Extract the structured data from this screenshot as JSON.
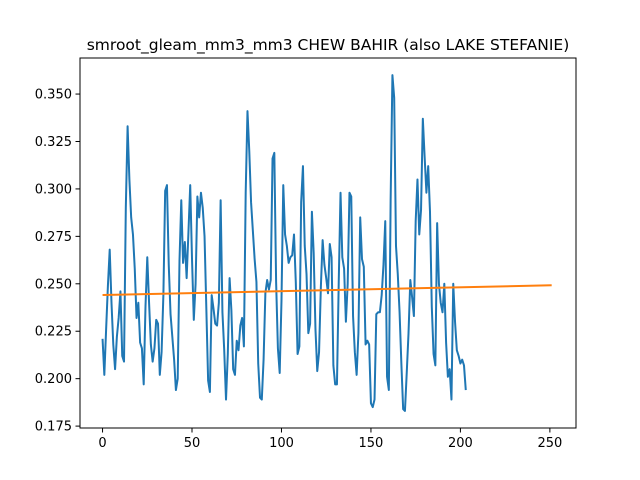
{
  "chart_data": {
    "type": "line",
    "title": "smroot_gleam_mm3_mm3 CHEW BAHIR (also LAKE STEFANIE)",
    "xlabel": "",
    "ylabel": "",
    "xlim": [
      -12.6,
      264.6
    ],
    "ylim": [
      0.174,
      0.369
    ],
    "x_ticks": [
      0,
      50,
      100,
      150,
      200,
      250
    ],
    "y_ticks": [
      0.175,
      0.2,
      0.225,
      0.25,
      0.275,
      0.3,
      0.325,
      0.35
    ],
    "y_tick_labels": [
      "0.175",
      "0.200",
      "0.225",
      "0.250",
      "0.275",
      "0.300",
      "0.325",
      "0.350"
    ],
    "grid": false,
    "series": [
      {
        "color": "#1f77b4",
        "points": [
          [
            0,
            0.221
          ],
          [
            1,
            0.202
          ],
          [
            2,
            0.226
          ],
          [
            3,
            0.249
          ],
          [
            4,
            0.268
          ],
          [
            5,
            0.24
          ],
          [
            6,
            0.218
          ],
          [
            7,
            0.205
          ],
          [
            8,
            0.222
          ],
          [
            9,
            0.232
          ],
          [
            10,
            0.246
          ],
          [
            11,
            0.212
          ],
          [
            12,
            0.209
          ],
          [
            13,
            0.29
          ],
          [
            14,
            0.333
          ],
          [
            15,
            0.305
          ],
          [
            16,
            0.285
          ],
          [
            17,
            0.276
          ],
          [
            18,
            0.258
          ],
          [
            19,
            0.232
          ],
          [
            20,
            0.24
          ],
          [
            21,
            0.219
          ],
          [
            22,
            0.216
          ],
          [
            23,
            0.197
          ],
          [
            24,
            0.238
          ],
          [
            25,
            0.264
          ],
          [
            26,
            0.24
          ],
          [
            27,
            0.218
          ],
          [
            28,
            0.209
          ],
          [
            29,
            0.216
          ],
          [
            30,
            0.231
          ],
          [
            31,
            0.229
          ],
          [
            32,
            0.202
          ],
          [
            33,
            0.214
          ],
          [
            34,
            0.244
          ],
          [
            35,
            0.299
          ],
          [
            36,
            0.302
          ],
          [
            37,
            0.26
          ],
          [
            38,
            0.234
          ],
          [
            39,
            0.222
          ],
          [
            40,
            0.21
          ],
          [
            41,
            0.194
          ],
          [
            42,
            0.2
          ],
          [
            43,
            0.262
          ],
          [
            44,
            0.294
          ],
          [
            45,
            0.261
          ],
          [
            46,
            0.272
          ],
          [
            47,
            0.253
          ],
          [
            48,
            0.277
          ],
          [
            49,
            0.302
          ],
          [
            50,
            0.263
          ],
          [
            51,
            0.231
          ],
          [
            52,
            0.25
          ],
          [
            53,
            0.296
          ],
          [
            54,
            0.285
          ],
          [
            55,
            0.298
          ],
          [
            56,
            0.29
          ],
          [
            57,
            0.275
          ],
          [
            58,
            0.237
          ],
          [
            59,
            0.199
          ],
          [
            60,
            0.193
          ],
          [
            61,
            0.244
          ],
          [
            62,
            0.237
          ],
          [
            63,
            0.229
          ],
          [
            64,
            0.228
          ],
          [
            65,
            0.24
          ],
          [
            66,
            0.294
          ],
          [
            67,
            0.235
          ],
          [
            68,
            0.215
          ],
          [
            69,
            0.189
          ],
          [
            70,
            0.213
          ],
          [
            71,
            0.253
          ],
          [
            72,
            0.236
          ],
          [
            73,
            0.205
          ],
          [
            74,
            0.202
          ],
          [
            75,
            0.22
          ],
          [
            76,
            0.215
          ],
          [
            77,
            0.228
          ],
          [
            78,
            0.232
          ],
          [
            79,
            0.217
          ],
          [
            80,
            0.298
          ],
          [
            81,
            0.341
          ],
          [
            82,
            0.32
          ],
          [
            83,
            0.293
          ],
          [
            84,
            0.278
          ],
          [
            85,
            0.263
          ],
          [
            86,
            0.251
          ],
          [
            87,
            0.208
          ],
          [
            88,
            0.19
          ],
          [
            89,
            0.189
          ],
          [
            90,
            0.21
          ],
          [
            91,
            0.245
          ],
          [
            92,
            0.252
          ],
          [
            93,
            0.247
          ],
          [
            94,
            0.252
          ],
          [
            95,
            0.316
          ],
          [
            96,
            0.319
          ],
          [
            97,
            0.251
          ],
          [
            98,
            0.216
          ],
          [
            99,
            0.203
          ],
          [
            100,
            0.241
          ],
          [
            101,
            0.302
          ],
          [
            102,
            0.276
          ],
          [
            103,
            0.27
          ],
          [
            104,
            0.261
          ],
          [
            105,
            0.264
          ],
          [
            106,
            0.265
          ],
          [
            107,
            0.276
          ],
          [
            108,
            0.251
          ],
          [
            109,
            0.213
          ],
          [
            110,
            0.217
          ],
          [
            111,
            0.293
          ],
          [
            112,
            0.312
          ],
          [
            113,
            0.27
          ],
          [
            114,
            0.255
          ],
          [
            115,
            0.224
          ],
          [
            116,
            0.229
          ],
          [
            117,
            0.288
          ],
          [
            118,
            0.266
          ],
          [
            119,
            0.226
          ],
          [
            120,
            0.204
          ],
          [
            121,
            0.214
          ],
          [
            122,
            0.248
          ],
          [
            123,
            0.273
          ],
          [
            124,
            0.26
          ],
          [
            125,
            0.253
          ],
          [
            126,
            0.245
          ],
          [
            127,
            0.271
          ],
          [
            128,
            0.264
          ],
          [
            129,
            0.207
          ],
          [
            130,
            0.197
          ],
          [
            131,
            0.197
          ],
          [
            132,
            0.251
          ],
          [
            133,
            0.298
          ],
          [
            134,
            0.264
          ],
          [
            135,
            0.258
          ],
          [
            136,
            0.23
          ],
          [
            137,
            0.25
          ],
          [
            138,
            0.298
          ],
          [
            139,
            0.296
          ],
          [
            140,
            0.233
          ],
          [
            141,
            0.214
          ],
          [
            142,
            0.202
          ],
          [
            143,
            0.224
          ],
          [
            144,
            0.285
          ],
          [
            145,
            0.263
          ],
          [
            146,
            0.259
          ],
          [
            147,
            0.218
          ],
          [
            148,
            0.22
          ],
          [
            149,
            0.218
          ],
          [
            150,
            0.187
          ],
          [
            151,
            0.185
          ],
          [
            152,
            0.189
          ],
          [
            153,
            0.234
          ],
          [
            154,
            0.235
          ],
          [
            155,
            0.235
          ],
          [
            156,
            0.244
          ],
          [
            157,
            0.26
          ],
          [
            158,
            0.283
          ],
          [
            159,
            0.201
          ],
          [
            160,
            0.194
          ],
          [
            161,
            0.294
          ],
          [
            162,
            0.36
          ],
          [
            163,
            0.348
          ],
          [
            164,
            0.27
          ],
          [
            165,
            0.255
          ],
          [
            166,
            0.235
          ],
          [
            167,
            0.208
          ],
          [
            168,
            0.184
          ],
          [
            169,
            0.183
          ],
          [
            170,
            0.203
          ],
          [
            171,
            0.224
          ],
          [
            172,
            0.252
          ],
          [
            173,
            0.243
          ],
          [
            174,
            0.233
          ],
          [
            175,
            0.283
          ],
          [
            176,
            0.305
          ],
          [
            177,
            0.276
          ],
          [
            178,
            0.289
          ],
          [
            179,
            0.337
          ],
          [
            180,
            0.317
          ],
          [
            181,
            0.298
          ],
          [
            182,
            0.312
          ],
          [
            183,
            0.288
          ],
          [
            184,
            0.238
          ],
          [
            185,
            0.213
          ],
          [
            186,
            0.207
          ],
          [
            187,
            0.282
          ],
          [
            188,
            0.25
          ],
          [
            189,
            0.24
          ],
          [
            190,
            0.235
          ],
          [
            191,
            0.25
          ],
          [
            192,
            0.219
          ],
          [
            193,
            0.201
          ],
          [
            194,
            0.205
          ],
          [
            195,
            0.189
          ],
          [
            196,
            0.25
          ],
          [
            197,
            0.23
          ],
          [
            198,
            0.215
          ],
          [
            199,
            0.212
          ],
          [
            200,
            0.208
          ],
          [
            201,
            0.21
          ],
          [
            202,
            0.207
          ],
          [
            203,
            0.194
          ]
        ]
      },
      {
        "color": "#ff7f0e",
        "points": [
          [
            0,
            0.2441
          ],
          [
            251,
            0.2492
          ]
        ]
      }
    ]
  }
}
